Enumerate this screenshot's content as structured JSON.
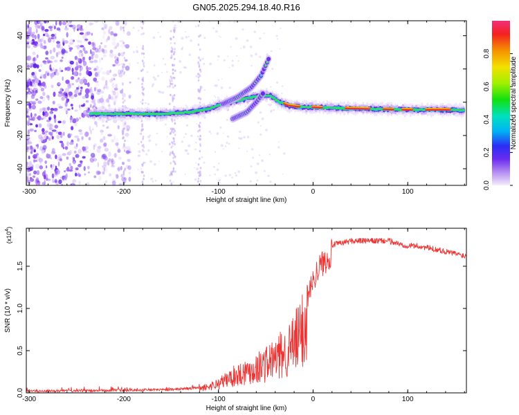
{
  "title": "GN05.2025.294.18.40.R16",
  "chart_data": [
    {
      "type": "heatmap",
      "name": "spectrogram",
      "xlabel": "Height of straight line (km)",
      "ylabel": "Frequency (Hz)",
      "xlim": [
        -303,
        162
      ],
      "ylim": [
        -50,
        49
      ],
      "xticks": [
        -300,
        -200,
        -100,
        0,
        100
      ],
      "xtick_labels": [
        "-300",
        "-200",
        "-100",
        "0",
        "100"
      ],
      "yticks": [
        -40,
        -20,
        0,
        20,
        40
      ],
      "ytick_labels": [
        "-40",
        "-20",
        "0",
        "20",
        "40"
      ],
      "ridge": {
        "description": "frequency ridge of high normalized amplitude",
        "x": [
          -235,
          -200,
          -160,
          -130,
          -110,
          -95,
          -80,
          -65,
          -55,
          -45,
          -35,
          -25,
          -10,
          0,
          20,
          60,
          100,
          140,
          160
        ],
        "y": [
          -7,
          -7,
          -7,
          -6,
          -4,
          -1,
          1,
          3,
          4,
          4,
          0,
          -2,
          -3,
          -3,
          -3.5,
          -4,
          -4.5,
          -4.5,
          -5
        ]
      },
      "upper_ridges": [
        {
          "x": [
            -95,
            -80,
            -65,
            -55,
            -47
          ],
          "y": [
            -1,
            3,
            9,
            16,
            26
          ]
        },
        {
          "x": [
            -85,
            -70,
            -60,
            -52
          ],
          "y": [
            -10,
            -6,
            0,
            6
          ]
        }
      ],
      "colorbar": {
        "label": "Normalized spectral amplitude",
        "ticks": [
          0.0,
          0.2,
          0.4,
          0.6,
          0.8
        ],
        "tick_labels": [
          "0.0",
          "0.2",
          "0.4",
          "0.6",
          "0.8"
        ],
        "range": [
          0,
          1
        ]
      }
    },
    {
      "type": "line",
      "name": "snr",
      "xlabel": "Height of straight line (km)",
      "ylabel": "SNR (10 * v/v)",
      "scale_label": "(x10",
      "scale_exponent": "4",
      "scale_close": ")",
      "color": "#ee3333",
      "xlim": [
        -303,
        162
      ],
      "ylim": [
        0,
        1.95
      ],
      "xticks": [
        -300,
        -200,
        -100,
        0,
        100
      ],
      "xtick_labels": [
        "-300",
        "-200",
        "-100",
        "0",
        "100"
      ],
      "yticks": [
        0.0,
        0.5,
        1.0,
        1.5
      ],
      "ytick_labels": [
        "0.0",
        "0.5",
        "1.0",
        "1.5"
      ],
      "envelope": {
        "x": [
          -303,
          -200,
          -150,
          -120,
          -100,
          -80,
          -60,
          -40,
          -25,
          -15,
          -5,
          5,
          20,
          40,
          60,
          80,
          95,
          110,
          130,
          150,
          162
        ],
        "y": [
          0.02,
          0.03,
          0.04,
          0.06,
          0.15,
          0.3,
          0.4,
          0.55,
          0.7,
          0.9,
          1.25,
          1.55,
          1.75,
          1.8,
          1.8,
          1.8,
          1.75,
          1.74,
          1.7,
          1.65,
          1.62
        ]
      }
    }
  ]
}
